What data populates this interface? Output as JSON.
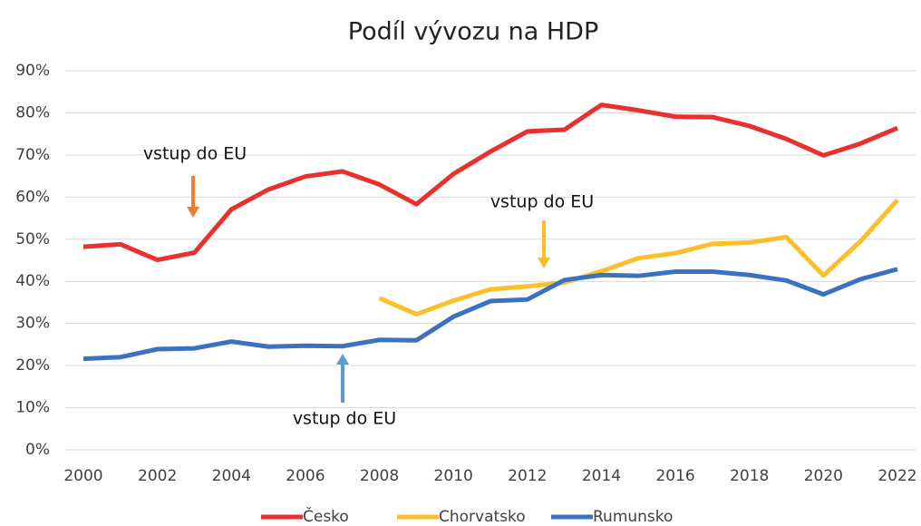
{
  "chart_data": {
    "type": "line",
    "title": "Podíl vývozu na HDP",
    "x": [
      2000,
      2001,
      2002,
      2003,
      2004,
      2005,
      2006,
      2007,
      2008,
      2009,
      2010,
      2011,
      2012,
      2013,
      2014,
      2015,
      2016,
      2017,
      2018,
      2019,
      2020,
      2021,
      2022
    ],
    "series": [
      {
        "name": "Česko",
        "color": "#e8302e",
        "values": [
          48.2,
          48.8,
          45.1,
          46.8,
          57.1,
          61.8,
          64.9,
          66.1,
          63.0,
          58.3,
          65.5,
          70.8,
          75.6,
          76.0,
          81.9,
          80.6,
          79.1,
          79.0,
          76.9,
          73.8,
          69.9,
          72.7,
          76.4
        ]
      },
      {
        "name": "Chorvatsko",
        "color": "#fbbf2b",
        "values": [
          null,
          null,
          null,
          null,
          null,
          null,
          null,
          null,
          36.0,
          32.2,
          35.4,
          38.1,
          38.8,
          39.7,
          42.4,
          45.5,
          46.7,
          48.9,
          49.2,
          50.5,
          41.4,
          49.5,
          59.3
        ]
      },
      {
        "name": "Rumunsko",
        "color": "#3b72c0",
        "values": [
          21.6,
          22.0,
          23.9,
          24.1,
          25.7,
          24.5,
          24.7,
          24.6,
          26.1,
          26.0,
          31.6,
          35.3,
          35.7,
          40.3,
          41.5,
          41.3,
          42.3,
          42.3,
          41.5,
          40.2,
          36.9,
          40.5,
          42.9
        ]
      }
    ],
    "xlim": [
      2000,
      2022
    ],
    "xticks": [
      2000,
      2002,
      2004,
      2006,
      2008,
      2010,
      2012,
      2014,
      2016,
      2018,
      2020,
      2022
    ],
    "ylim": [
      0,
      90
    ],
    "yticks": [
      {
        "value": 0,
        "label": "0%"
      },
      {
        "value": 10,
        "label": "10%"
      },
      {
        "value": 20,
        "label": "20%"
      },
      {
        "value": 30,
        "label": "30%"
      },
      {
        "value": 40,
        "label": "40%"
      },
      {
        "value": 50,
        "label": "50%"
      },
      {
        "value": 60,
        "label": "60%"
      },
      {
        "value": 70,
        "label": "70%"
      },
      {
        "value": 80,
        "label": "80%"
      },
      {
        "value": 90,
        "label": "90%"
      }
    ],
    "grid": true,
    "legend": "bottom",
    "annotations": [
      "vstup do EU",
      "vstup do EU",
      "vstup do EU"
    ]
  }
}
